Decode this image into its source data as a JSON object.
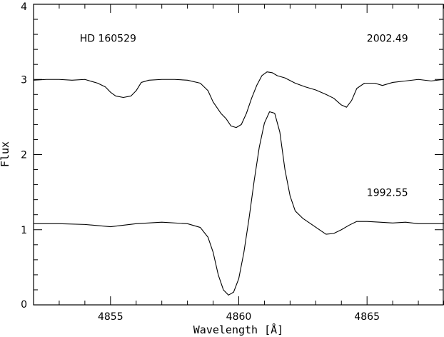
{
  "chart_data": {
    "type": "line",
    "xlabel": "Wavelength [Å]",
    "ylabel": "Flux",
    "xlim": [
      4852,
      4868
    ],
    "ylim": [
      0,
      4
    ],
    "xticks": [
      4855,
      4860,
      4865
    ],
    "yticks": [
      0,
      1,
      2,
      3,
      4
    ],
    "grid": false,
    "annotations": [
      {
        "text": "HD 160529",
        "x": 4853.8,
        "y": 3.5
      },
      {
        "text": "2002.49",
        "x": 4866.6,
        "y": 3.5
      },
      {
        "text": "1992.55",
        "x": 4866.6,
        "y": 1.45
      }
    ],
    "series": [
      {
        "line_color": "#000000",
        "points": [
          [
            4852.0,
            2.99
          ],
          [
            4852.5,
            3.0
          ],
          [
            4853.0,
            3.0
          ],
          [
            4853.5,
            2.99
          ],
          [
            4854.0,
            3.0
          ],
          [
            4854.5,
            2.95
          ],
          [
            4854.8,
            2.9
          ],
          [
            4855.0,
            2.83
          ],
          [
            4855.2,
            2.78
          ],
          [
            4855.5,
            2.76
          ],
          [
            4855.8,
            2.78
          ],
          [
            4856.0,
            2.85
          ],
          [
            4856.2,
            2.96
          ],
          [
            4856.5,
            2.99
          ],
          [
            4857.0,
            3.0
          ],
          [
            4857.5,
            3.0
          ],
          [
            4858.0,
            2.99
          ],
          [
            4858.5,
            2.95
          ],
          [
            4858.8,
            2.85
          ],
          [
            4859.0,
            2.7
          ],
          [
            4859.3,
            2.55
          ],
          [
            4859.5,
            2.48
          ],
          [
            4859.7,
            2.38
          ],
          [
            4859.9,
            2.36
          ],
          [
            4860.1,
            2.4
          ],
          [
            4860.3,
            2.55
          ],
          [
            4860.5,
            2.75
          ],
          [
            4860.7,
            2.92
          ],
          [
            4860.9,
            3.05
          ],
          [
            4861.1,
            3.1
          ],
          [
            4861.3,
            3.09
          ],
          [
            4861.5,
            3.05
          ],
          [
            4861.8,
            3.02
          ],
          [
            4862.2,
            2.95
          ],
          [
            4862.6,
            2.9
          ],
          [
            4863.0,
            2.86
          ],
          [
            4863.4,
            2.8
          ],
          [
            4863.7,
            2.75
          ],
          [
            4864.0,
            2.66
          ],
          [
            4864.2,
            2.63
          ],
          [
            4864.4,
            2.72
          ],
          [
            4864.6,
            2.88
          ],
          [
            4864.9,
            2.95
          ],
          [
            4865.3,
            2.95
          ],
          [
            4865.6,
            2.92
          ],
          [
            4866.0,
            2.96
          ],
          [
            4866.5,
            2.98
          ],
          [
            4867.0,
            3.0
          ],
          [
            4867.5,
            2.98
          ],
          [
            4868.0,
            3.0
          ]
        ]
      },
      {
        "line_color": "#000000",
        "points": [
          [
            4852.0,
            1.08
          ],
          [
            4853.0,
            1.08
          ],
          [
            4854.0,
            1.07
          ],
          [
            4855.0,
            1.04
          ],
          [
            4856.0,
            1.08
          ],
          [
            4857.0,
            1.1
          ],
          [
            4858.0,
            1.08
          ],
          [
            4858.5,
            1.03
          ],
          [
            4858.8,
            0.9
          ],
          [
            4859.0,
            0.7
          ],
          [
            4859.2,
            0.4
          ],
          [
            4859.4,
            0.2
          ],
          [
            4859.6,
            0.13
          ],
          [
            4859.8,
            0.17
          ],
          [
            4860.0,
            0.35
          ],
          [
            4860.2,
            0.7
          ],
          [
            4860.4,
            1.15
          ],
          [
            4860.6,
            1.65
          ],
          [
            4860.8,
            2.1
          ],
          [
            4861.0,
            2.42
          ],
          [
            4861.2,
            2.57
          ],
          [
            4861.4,
            2.55
          ],
          [
            4861.6,
            2.3
          ],
          [
            4861.8,
            1.8
          ],
          [
            4862.0,
            1.45
          ],
          [
            4862.2,
            1.25
          ],
          [
            4862.5,
            1.15
          ],
          [
            4862.8,
            1.08
          ],
          [
            4863.1,
            1.01
          ],
          [
            4863.4,
            0.94
          ],
          [
            4863.7,
            0.95
          ],
          [
            4864.0,
            1.0
          ],
          [
            4864.3,
            1.06
          ],
          [
            4864.6,
            1.11
          ],
          [
            4865.0,
            1.11
          ],
          [
            4865.5,
            1.1
          ],
          [
            4866.0,
            1.09
          ],
          [
            4866.5,
            1.1
          ],
          [
            4867.0,
            1.08
          ],
          [
            4868.0,
            1.08
          ]
        ]
      }
    ]
  }
}
